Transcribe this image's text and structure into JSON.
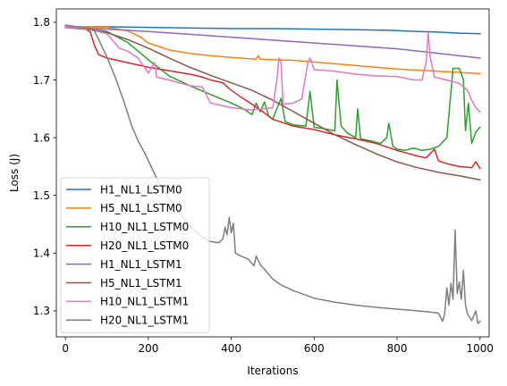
{
  "chart_data": {
    "type": "line",
    "title": "",
    "xlabel": "Iterations",
    "ylabel": "Loss (J)",
    "xlim": [
      -22,
      1022
    ],
    "ylim": [
      1.255,
      1.823
    ],
    "xticks": [
      0,
      200,
      400,
      600,
      800,
      1000
    ],
    "xtick_labels": [
      "0",
      "200",
      "400",
      "600",
      "800",
      "1000"
    ],
    "yticks": [
      1.3,
      1.4,
      1.5,
      1.6,
      1.7,
      1.8
    ],
    "ytick_labels": [
      "1.3",
      "1.4",
      "1.5",
      "1.6",
      "1.7",
      "1.8"
    ],
    "grid": false,
    "legend_position": "lower-left",
    "series": [
      {
        "name": "H1_NL1_LSTM0",
        "color": "#1f77b4",
        "points": [
          [
            0,
            1.792
          ],
          [
            100,
            1.792
          ],
          [
            200,
            1.791
          ],
          [
            300,
            1.79
          ],
          [
            400,
            1.789
          ],
          [
            500,
            1.789
          ],
          [
            600,
            1.788
          ],
          [
            700,
            1.787
          ],
          [
            780,
            1.786
          ],
          [
            850,
            1.784
          ],
          [
            900,
            1.783
          ],
          [
            950,
            1.781
          ],
          [
            1000,
            1.78
          ]
        ]
      },
      {
        "name": "H5_NL1_LSTM0",
        "color": "#ff7f0e",
        "points": [
          [
            0,
            1.792
          ],
          [
            100,
            1.791
          ],
          [
            150,
            1.785
          ],
          [
            180,
            1.775
          ],
          [
            200,
            1.764
          ],
          [
            250,
            1.752
          ],
          [
            300,
            1.746
          ],
          [
            350,
            1.742
          ],
          [
            400,
            1.739
          ],
          [
            440,
            1.737
          ],
          [
            460,
            1.736
          ],
          [
            465,
            1.742
          ],
          [
            470,
            1.736
          ],
          [
            500,
            1.735
          ],
          [
            550,
            1.734
          ],
          [
            600,
            1.731
          ],
          [
            650,
            1.728
          ],
          [
            700,
            1.725
          ],
          [
            750,
            1.722
          ],
          [
            800,
            1.719
          ],
          [
            850,
            1.717
          ],
          [
            900,
            1.715
          ],
          [
            950,
            1.713
          ],
          [
            1000,
            1.711
          ]
        ]
      },
      {
        "name": "H10_NL1_LSTM0",
        "color": "#2ca02c",
        "points": [
          [
            0,
            1.791
          ],
          [
            50,
            1.789
          ],
          [
            100,
            1.784
          ],
          [
            150,
            1.765
          ],
          [
            200,
            1.735
          ],
          [
            250,
            1.707
          ],
          [
            300,
            1.69
          ],
          [
            350,
            1.675
          ],
          [
            400,
            1.66
          ],
          [
            430,
            1.65
          ],
          [
            450,
            1.64
          ],
          [
            460,
            1.66
          ],
          [
            470,
            1.645
          ],
          [
            480,
            1.662
          ],
          [
            490,
            1.638
          ],
          [
            500,
            1.632
          ],
          [
            520,
            1.668
          ],
          [
            530,
            1.628
          ],
          [
            550,
            1.622
          ],
          [
            580,
            1.62
          ],
          [
            590,
            1.68
          ],
          [
            600,
            1.618
          ],
          [
            620,
            1.616
          ],
          [
            650,
            1.612
          ],
          [
            655,
            1.7
          ],
          [
            665,
            1.62
          ],
          [
            680,
            1.608
          ],
          [
            700,
            1.6
          ],
          [
            705,
            1.65
          ],
          [
            712,
            1.598
          ],
          [
            740,
            1.594
          ],
          [
            760,
            1.59
          ],
          [
            775,
            1.6
          ],
          [
            780,
            1.625
          ],
          [
            790,
            1.585
          ],
          [
            800,
            1.58
          ],
          [
            820,
            1.578
          ],
          [
            840,
            1.582
          ],
          [
            860,
            1.578
          ],
          [
            880,
            1.58
          ],
          [
            900,
            1.585
          ],
          [
            920,
            1.6
          ],
          [
            930,
            1.68
          ],
          [
            935,
            1.72
          ],
          [
            950,
            1.72
          ],
          [
            960,
            1.7
          ],
          [
            965,
            1.612
          ],
          [
            972,
            1.66
          ],
          [
            980,
            1.59
          ],
          [
            990,
            1.61
          ],
          [
            1000,
            1.618
          ]
        ]
      },
      {
        "name": "H20_NL1_LSTM0",
        "color": "#d62728",
        "points": [
          [
            0,
            1.791
          ],
          [
            50,
            1.788
          ],
          [
            60,
            1.783
          ],
          [
            70,
            1.76
          ],
          [
            80,
            1.744
          ],
          [
            100,
            1.738
          ],
          [
            150,
            1.73
          ],
          [
            200,
            1.722
          ],
          [
            250,
            1.716
          ],
          [
            300,
            1.71
          ],
          [
            330,
            1.705
          ],
          [
            350,
            1.7
          ],
          [
            380,
            1.695
          ],
          [
            395,
            1.685
          ],
          [
            420,
            1.672
          ],
          [
            450,
            1.658
          ],
          [
            480,
            1.643
          ],
          [
            500,
            1.632
          ],
          [
            550,
            1.62
          ],
          [
            600,
            1.614
          ],
          [
            650,
            1.605
          ],
          [
            700,
            1.598
          ],
          [
            750,
            1.59
          ],
          [
            800,
            1.578
          ],
          [
            850,
            1.568
          ],
          [
            870,
            1.565
          ],
          [
            890,
            1.58
          ],
          [
            900,
            1.56
          ],
          [
            920,
            1.555
          ],
          [
            950,
            1.55
          ],
          [
            980,
            1.548
          ],
          [
            990,
            1.558
          ],
          [
            1000,
            1.547
          ]
        ]
      },
      {
        "name": "H1_NL1_LSTM1",
        "color": "#9467bd",
        "points": [
          [
            0,
            1.791
          ],
          [
            100,
            1.788
          ],
          [
            200,
            1.784
          ],
          [
            300,
            1.779
          ],
          [
            400,
            1.774
          ],
          [
            500,
            1.769
          ],
          [
            600,
            1.764
          ],
          [
            700,
            1.759
          ],
          [
            800,
            1.754
          ],
          [
            850,
            1.75
          ],
          [
            900,
            1.746
          ],
          [
            950,
            1.742
          ],
          [
            1000,
            1.738
          ]
        ]
      },
      {
        "name": "H5_NL1_LSTM1",
        "color": "#8c564b",
        "points": [
          [
            0,
            1.791
          ],
          [
            50,
            1.788
          ],
          [
            100,
            1.782
          ],
          [
            150,
            1.77
          ],
          [
            200,
            1.755
          ],
          [
            250,
            1.738
          ],
          [
            300,
            1.722
          ],
          [
            350,
            1.708
          ],
          [
            400,
            1.695
          ],
          [
            450,
            1.682
          ],
          [
            500,
            1.665
          ],
          [
            550,
            1.645
          ],
          [
            600,
            1.625
          ],
          [
            650,
            1.605
          ],
          [
            700,
            1.588
          ],
          [
            750,
            1.572
          ],
          [
            800,
            1.558
          ],
          [
            850,
            1.548
          ],
          [
            900,
            1.54
          ],
          [
            950,
            1.534
          ],
          [
            1000,
            1.527
          ]
        ]
      },
      {
        "name": "H10_NL1_LSTM1",
        "color": "#e377c2",
        "points": [
          [
            0,
            1.792
          ],
          [
            50,
            1.789
          ],
          [
            100,
            1.78
          ],
          [
            130,
            1.755
          ],
          [
            150,
            1.75
          ],
          [
            175,
            1.738
          ],
          [
            200,
            1.712
          ],
          [
            215,
            1.73
          ],
          [
            220,
            1.705
          ],
          [
            250,
            1.7
          ],
          [
            300,
            1.69
          ],
          [
            330,
            1.688
          ],
          [
            350,
            1.66
          ],
          [
            400,
            1.652
          ],
          [
            450,
            1.648
          ],
          [
            500,
            1.652
          ],
          [
            510,
            1.7
          ],
          [
            515,
            1.738
          ],
          [
            520,
            1.73
          ],
          [
            525,
            1.658
          ],
          [
            550,
            1.66
          ],
          [
            570,
            1.667
          ],
          [
            580,
            1.71
          ],
          [
            585,
            1.73
          ],
          [
            590,
            1.738
          ],
          [
            600,
            1.718
          ],
          [
            650,
            1.715
          ],
          [
            700,
            1.71
          ],
          [
            750,
            1.707
          ],
          [
            800,
            1.706
          ],
          [
            840,
            1.7
          ],
          [
            860,
            1.7
          ],
          [
            870,
            1.73
          ],
          [
            875,
            1.782
          ],
          [
            880,
            1.74
          ],
          [
            890,
            1.705
          ],
          [
            920,
            1.7
          ],
          [
            950,
            1.694
          ],
          [
            970,
            1.682
          ],
          [
            980,
            1.665
          ],
          [
            990,
            1.652
          ],
          [
            1000,
            1.645
          ]
        ]
      },
      {
        "name": "H20_NL1_LSTM1",
        "color": "#7f7f7f",
        "points": [
          [
            0,
            1.795
          ],
          [
            50,
            1.79
          ],
          [
            70,
            1.785
          ],
          [
            80,
            1.77
          ],
          [
            100,
            1.74
          ],
          [
            120,
            1.705
          ],
          [
            140,
            1.665
          ],
          [
            160,
            1.62
          ],
          [
            175,
            1.595
          ],
          [
            190,
            1.575
          ],
          [
            210,
            1.545
          ],
          [
            230,
            1.515
          ],
          [
            250,
            1.495
          ],
          [
            280,
            1.465
          ],
          [
            310,
            1.44
          ],
          [
            330,
            1.428
          ],
          [
            350,
            1.42
          ],
          [
            370,
            1.418
          ],
          [
            380,
            1.425
          ],
          [
            385,
            1.445
          ],
          [
            390,
            1.432
          ],
          [
            395,
            1.462
          ],
          [
            400,
            1.435
          ],
          [
            405,
            1.452
          ],
          [
            410,
            1.4
          ],
          [
            420,
            1.396
          ],
          [
            440,
            1.39
          ],
          [
            455,
            1.378
          ],
          [
            460,
            1.395
          ],
          [
            470,
            1.38
          ],
          [
            480,
            1.372
          ],
          [
            500,
            1.355
          ],
          [
            520,
            1.345
          ],
          [
            550,
            1.335
          ],
          [
            600,
            1.322
          ],
          [
            650,
            1.315
          ],
          [
            700,
            1.31
          ],
          [
            750,
            1.306
          ],
          [
            800,
            1.303
          ],
          [
            850,
            1.3
          ],
          [
            880,
            1.298
          ],
          [
            900,
            1.296
          ],
          [
            910,
            1.282
          ],
          [
            915,
            1.296
          ],
          [
            920,
            1.34
          ],
          [
            925,
            1.31
          ],
          [
            930,
            1.348
          ],
          [
            935,
            1.32
          ],
          [
            940,
            1.44
          ],
          [
            945,
            1.33
          ],
          [
            950,
            1.35
          ],
          [
            955,
            1.32
          ],
          [
            960,
            1.37
          ],
          [
            965,
            1.31
          ],
          [
            970,
            1.295
          ],
          [
            980,
            1.283
          ],
          [
            990,
            1.3
          ],
          [
            995,
            1.278
          ],
          [
            1000,
            1.282
          ]
        ]
      }
    ]
  }
}
